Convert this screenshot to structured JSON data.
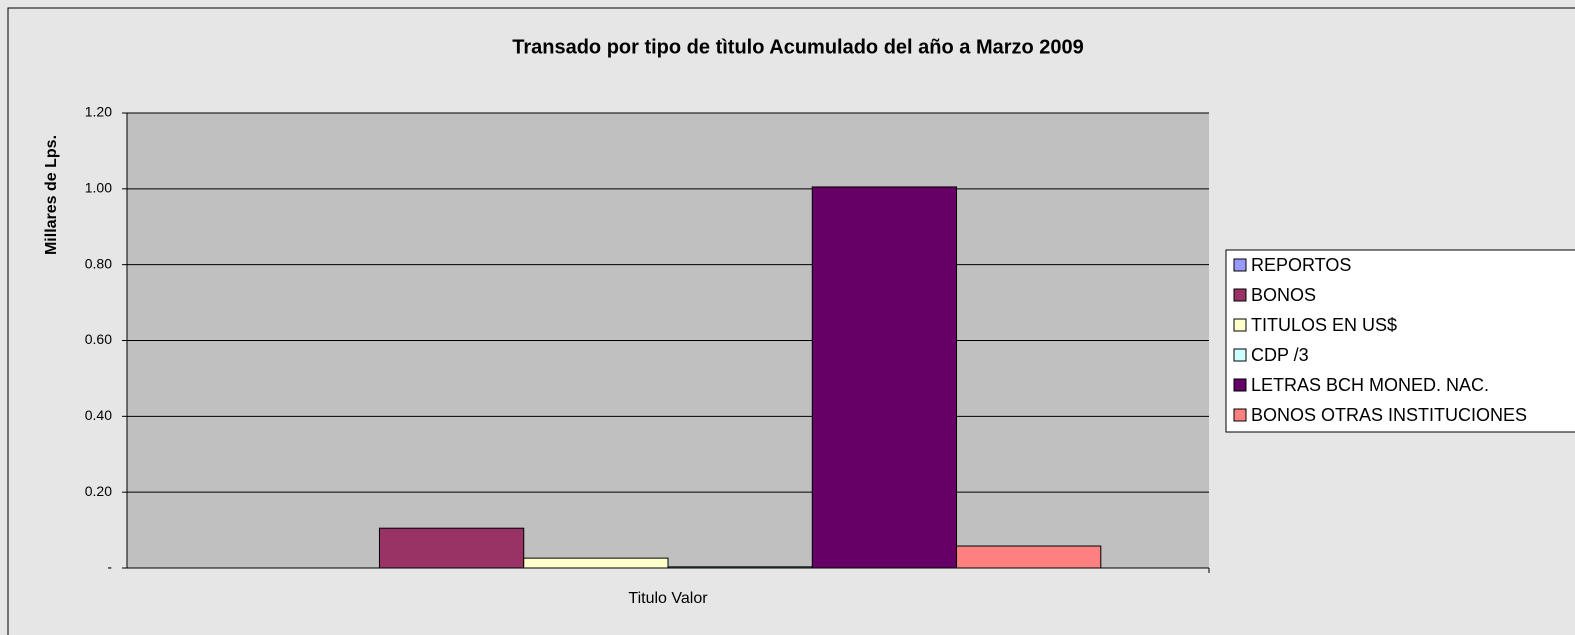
{
  "chart_data": {
    "type": "bar",
    "title": "Transado por tipo de tìtulo Acumulado del año a Marzo 2009",
    "y_label": "Millares de Lps.",
    "categories": [
      "Titulo Valor"
    ],
    "series": [
      {
        "name": "REPORTOS",
        "color": "#9999ff",
        "values": [
          0
        ]
      },
      {
        "name": "BONOS",
        "color": "#993366",
        "values": [
          0.105
        ]
      },
      {
        "name": "TITULOS EN US$",
        "color": "#ffffcc",
        "values": [
          0.026
        ]
      },
      {
        "name": "CDP /3",
        "color": "#ccffff",
        "values": [
          0.003
        ]
      },
      {
        "name": "LETRAS BCH MONED. NAC.",
        "color": "#660066",
        "values": [
          1.005
        ]
      },
      {
        "name": "BONOS OTRAS INSTITUCIONES",
        "color": "#ff8080",
        "values": [
          0.058
        ]
      }
    ],
    "ylim": [
      0,
      1.2
    ],
    "yticks": [
      {
        "value": 0,
        "label": "-"
      },
      {
        "value": 0.2,
        "label": "0.20"
      },
      {
        "value": 0.4,
        "label": "0.40"
      },
      {
        "value": 0.6,
        "label": "0.60"
      },
      {
        "value": 0.8,
        "label": "0.80"
      },
      {
        "value": 1,
        "label": "1.00"
      },
      {
        "value": 1.2,
        "label": "1.20"
      }
    ],
    "grid": true,
    "legend": "right"
  }
}
